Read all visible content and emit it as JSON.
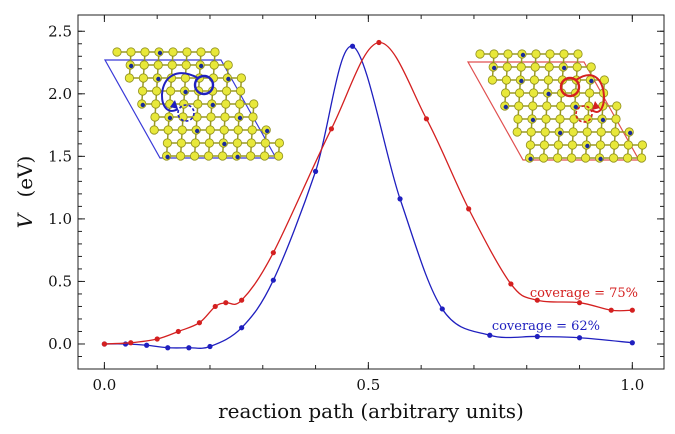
{
  "chart_data": {
    "type": "line",
    "title": "",
    "xlabel": "reaction path  (arbitrary units)",
    "ylabel_var": "V",
    "ylabel_unit": "(eV)",
    "xlim": [
      -0.05,
      1.06
    ],
    "ylim": [
      -0.2,
      2.63
    ],
    "x_ticks": [
      0.0,
      0.5,
      1.0
    ],
    "x_tick_labels": [
      "0.0",
      "0.5",
      "1.0"
    ],
    "y_ticks": [
      0.0,
      0.5,
      1.0,
      1.5,
      2.0,
      2.5
    ],
    "y_tick_labels": [
      "0.0",
      "0.5",
      "1.0",
      "1.5",
      "2.0",
      "2.5"
    ],
    "grid": false,
    "series": [
      {
        "name": "coverage = 62%",
        "color": "#1f1fbf",
        "x": [
          0.0,
          0.04,
          0.08,
          0.12,
          0.16,
          0.2,
          0.26,
          0.32,
          0.4,
          0.47,
          0.56,
          0.64,
          0.73,
          0.82,
          0.9,
          1.0
        ],
        "y": [
          0.0,
          0.0,
          -0.01,
          -0.03,
          -0.03,
          -0.02,
          0.13,
          0.51,
          1.38,
          2.38,
          1.16,
          0.28,
          0.07,
          0.06,
          0.05,
          0.01
        ]
      },
      {
        "name": "coverage = 75%",
        "color": "#d42020",
        "x": [
          0.0,
          0.05,
          0.1,
          0.14,
          0.18,
          0.21,
          0.23,
          0.26,
          0.32,
          0.43,
          0.52,
          0.61,
          0.69,
          0.77,
          0.82,
          0.9,
          0.96,
          1.0
        ],
        "y": [
          0.0,
          0.01,
          0.04,
          0.1,
          0.17,
          0.3,
          0.33,
          0.35,
          0.73,
          1.72,
          2.41,
          1.8,
          1.08,
          0.48,
          0.35,
          0.33,
          0.27,
          0.27
        ]
      }
    ],
    "annotations": [
      {
        "text": "coverage = 75%",
        "color": "#d42020"
      },
      {
        "text": "coverage = 62%",
        "color": "#1f1fbf"
      }
    ],
    "insets": [
      {
        "name": "inset-left-structure",
        "frame_color": "#3a3ad8",
        "highlight_color": "#1f1fbf"
      },
      {
        "name": "inset-right-structure",
        "frame_color": "#e05050",
        "highlight_color": "#d42020"
      }
    ]
  }
}
